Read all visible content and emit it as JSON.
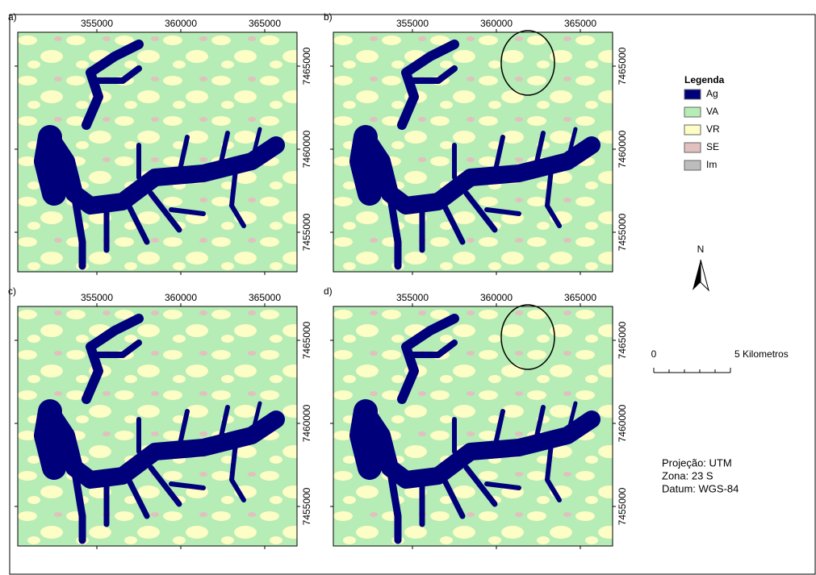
{
  "panels": [
    {
      "label": "a)"
    },
    {
      "label": "b)"
    },
    {
      "label": "c)"
    },
    {
      "label": "d)"
    }
  ],
  "x_ticks": [
    "355000",
    "360000",
    "365000"
  ],
  "y_ticks": [
    "7465000",
    "7460000",
    "7455000"
  ],
  "legend": {
    "title": "Legenda",
    "items": [
      {
        "label": "Ag",
        "color": "#00007a"
      },
      {
        "label": "VA",
        "color": "#b6ecb6"
      },
      {
        "label": "VR",
        "color": "#fdfdc6"
      },
      {
        "label": "SE",
        "color": "#e2c0c0"
      },
      {
        "label": "Im",
        "color": "#bdbdbd"
      }
    ]
  },
  "north": "N",
  "scale": {
    "start": "0",
    "end": "5 Kilometros"
  },
  "info": [
    "Projeção: UTM",
    "Zona: 23 S",
    "Datum: WGS-84"
  ]
}
